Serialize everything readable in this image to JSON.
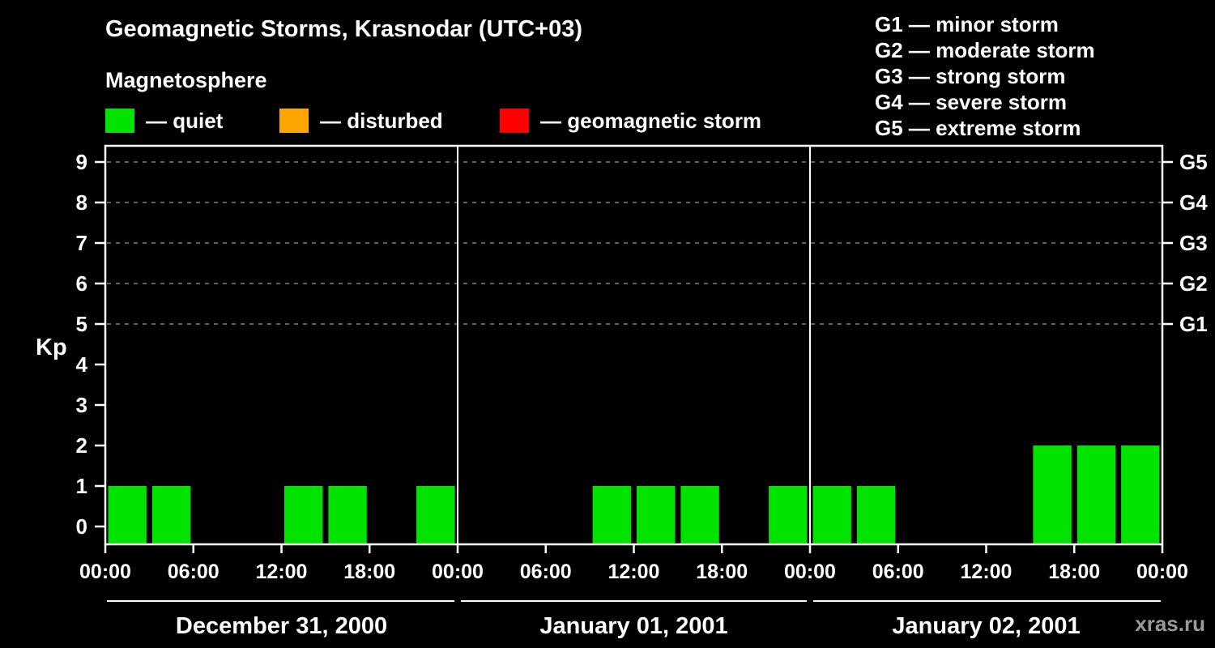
{
  "header": {
    "title": "Geomagnetic Storms, Krasnodar (UTC+03)",
    "subtitle": "Magnetosphere"
  },
  "legend": {
    "items": [
      {
        "label": "— quiet",
        "color": "#00e300"
      },
      {
        "label": "— disturbed",
        "color": "#ffa500"
      },
      {
        "label": "— geomagnetic storm",
        "color": "#ff0000"
      }
    ]
  },
  "storm_scale_legend": {
    "items": [
      "G1 — minor storm",
      "G2 — moderate storm",
      "G3 — strong storm",
      "G4 — severe storm",
      "G5 — extreme storm"
    ]
  },
  "watermark": "xras.ru",
  "chart_data": {
    "type": "bar",
    "title": "Geomagnetic Storms, Krasnodar (UTC+03)",
    "ylabel": "Kp",
    "ylim": [
      0,
      9
    ],
    "yticks": [
      0,
      1,
      2,
      3,
      4,
      5,
      6,
      7,
      8,
      9
    ],
    "gridlines_kp": [
      5,
      6,
      7,
      8,
      9
    ],
    "grid_style": "dashed",
    "right_axis": [
      {
        "label": "G1",
        "kp": 5
      },
      {
        "label": "G2",
        "kp": 6
      },
      {
        "label": "G3",
        "kp": 7
      },
      {
        "label": "G4",
        "kp": 8
      },
      {
        "label": "G5",
        "kp": 9
      }
    ],
    "x_tick_labels": [
      "00:00",
      "06:00",
      "12:00",
      "18:00",
      "00:00",
      "06:00",
      "12:00",
      "18:00",
      "00:00",
      "06:00",
      "12:00",
      "18:00",
      "00:00"
    ],
    "interval_hours": 3,
    "days": [
      {
        "date": "December 31, 2000",
        "kp_3h": [
          1,
          1,
          0,
          0,
          1,
          1,
          0,
          1
        ]
      },
      {
        "date": "January 01, 2001",
        "kp_3h": [
          0,
          0,
          0,
          1,
          1,
          1,
          0,
          1
        ]
      },
      {
        "date": "January 02, 2001",
        "kp_3h": [
          1,
          1,
          0,
          0,
          0,
          2,
          2,
          2
        ]
      }
    ],
    "colors": {
      "quiet": "#00e300",
      "disturbed": "#ffa500",
      "storm": "#ff0000",
      "axis": "#ffffff",
      "grid": "#808080"
    },
    "thresholds": {
      "disturbed_min": 4,
      "storm_min": 5
    },
    "legend_position": "top-left"
  }
}
